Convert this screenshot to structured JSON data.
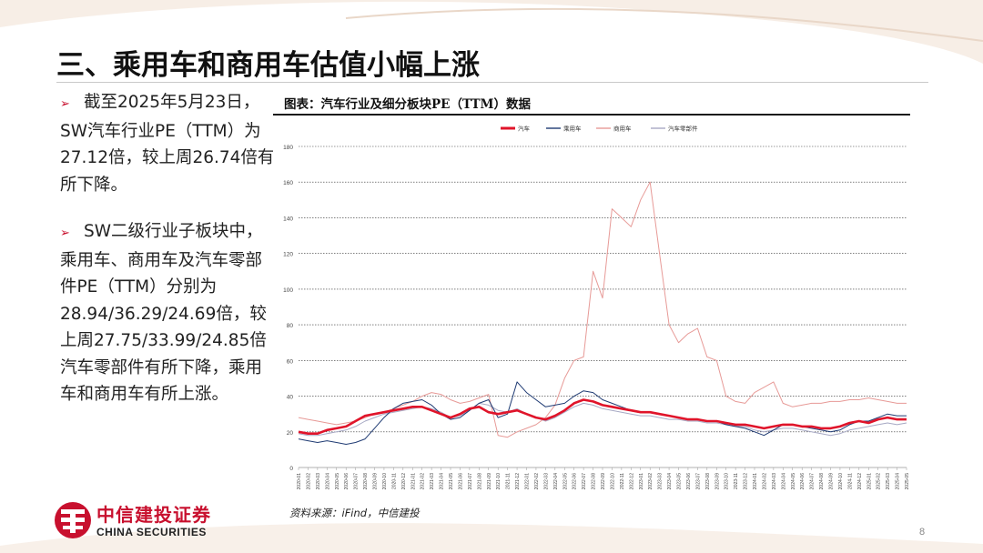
{
  "slide": {
    "title": "三、乘用车和商用车估值小幅上涨",
    "page_number": "8"
  },
  "bullets": [
    {
      "marker": "➢",
      "text": "截至2025年5月23日，SW汽车行业PE（TTM）为27.12倍，较上周26.74倍有所下降。"
    },
    {
      "marker": "➢",
      "text": "SW二级行业子板块中，乘用车、商用车及汽车零部件PE（TTM）分别为28.94/36.29/24.69倍，较上周27.75/33.99/24.85倍汽车零部件有所下降，乘用车和商用车有所上涨。"
    }
  ],
  "chart": {
    "caption": "图表：汽车行业及细分板块PE（TTM）数据",
    "source": "资料来源：iFind，中信建投"
  },
  "logo": {
    "name_cn": "中信建投证券",
    "name_en": "CHINA SECURITIES"
  },
  "colors": {
    "brand_red": "#c8102e",
    "auto": "#e0142a",
    "passenger": "#1f3b73",
    "commercial": "#e79a97",
    "parts": "#a7a9c4"
  },
  "chart_data": {
    "type": "line",
    "title": "",
    "xlabel": "",
    "ylabel": "",
    "ylim": [
      0,
      180
    ],
    "yticks": [
      0,
      20,
      40,
      60,
      80,
      100,
      120,
      140,
      160,
      180
    ],
    "grid": true,
    "legend_position": "top-center",
    "x": [
      "2020-01",
      "2020-02",
      "2020-03",
      "2020-04",
      "2020-05",
      "2020-06",
      "2020-07",
      "2020-08",
      "2020-09",
      "2020-10",
      "2020-11",
      "2020-12",
      "2021-01",
      "2021-02",
      "2021-03",
      "2021-04",
      "2021-05",
      "2021-06",
      "2021-07",
      "2021-08",
      "2021-09",
      "2021-10",
      "2021-11",
      "2021-12",
      "2022-01",
      "2022-02",
      "2022-03",
      "2022-04",
      "2022-05",
      "2022-06",
      "2022-07",
      "2022-08",
      "2022-09",
      "2022-10",
      "2022-11",
      "2022-12",
      "2023-01",
      "2023-02",
      "2023-03",
      "2023-04",
      "2023-05",
      "2023-06",
      "2023-07",
      "2023-08",
      "2023-09",
      "2023-10",
      "2023-11",
      "2023-12",
      "2024-01",
      "2024-02",
      "2024-03",
      "2024-04",
      "2024-05",
      "2024-06",
      "2024-07",
      "2024-08",
      "2024-09",
      "2024-10",
      "2024-11",
      "2024-12",
      "2025-01",
      "2025-02",
      "2025-03",
      "2025-04",
      "2025-05"
    ],
    "series": [
      {
        "name": "汽车",
        "values": [
          20,
          19,
          19,
          21,
          22,
          23,
          26,
          29,
          30,
          31,
          32,
          33,
          34,
          34,
          32,
          30,
          28,
          30,
          33,
          34,
          31,
          30,
          31,
          32,
          30,
          28,
          27,
          29,
          32,
          36,
          38,
          37,
          35,
          34,
          33,
          32,
          31,
          31,
          30,
          29,
          28,
          27,
          27,
          26,
          26,
          25,
          24,
          24,
          23,
          22,
          23,
          24,
          24,
          23,
          23,
          22,
          22,
          23,
          25,
          26,
          25,
          27,
          28,
          27,
          27
        ]
      },
      {
        "name": "乘用车",
        "values": [
          16,
          15,
          14,
          15,
          14,
          13,
          14,
          16,
          22,
          28,
          33,
          36,
          37,
          38,
          35,
          30,
          27,
          28,
          32,
          36,
          38,
          28,
          30,
          48,
          42,
          38,
          34,
          35,
          36,
          40,
          43,
          42,
          38,
          36,
          34,
          32,
          31,
          31,
          30,
          29,
          28,
          27,
          27,
          26,
          26,
          24,
          23,
          22,
          20,
          18,
          21,
          24,
          24,
          23,
          22,
          21,
          20,
          21,
          24,
          26,
          26,
          28,
          30,
          29,
          29
        ]
      },
      {
        "name": "商用车",
        "values": [
          28,
          27,
          26,
          25,
          24,
          25,
          26,
          28,
          30,
          31,
          33,
          35,
          37,
          40,
          42,
          41,
          38,
          36,
          37,
          39,
          41,
          18,
          17,
          20,
          22,
          24,
          28,
          35,
          50,
          60,
          62,
          110,
          95,
          145,
          140,
          135,
          150,
          160,
          120,
          80,
          70,
          75,
          78,
          62,
          60,
          40,
          37,
          36,
          42,
          45,
          48,
          36,
          34,
          35,
          36,
          36,
          37,
          37,
          38,
          38,
          39,
          38,
          37,
          36,
          36
        ]
      },
      {
        "name": "汽车零部件",
        "values": [
          19,
          18,
          18,
          19,
          20,
          21,
          23,
          26,
          28,
          30,
          31,
          32,
          33,
          34,
          33,
          31,
          28,
          29,
          32,
          36,
          35,
          32,
          31,
          33,
          30,
          28,
          26,
          28,
          31,
          34,
          36,
          35,
          33,
          32,
          31,
          30,
          29,
          29,
          28,
          27,
          27,
          26,
          26,
          25,
          25,
          24,
          23,
          23,
          21,
          20,
          21,
          22,
          22,
          21,
          20,
          19,
          18,
          19,
          21,
          22,
          23,
          24,
          25,
          24,
          25
        ]
      }
    ]
  }
}
